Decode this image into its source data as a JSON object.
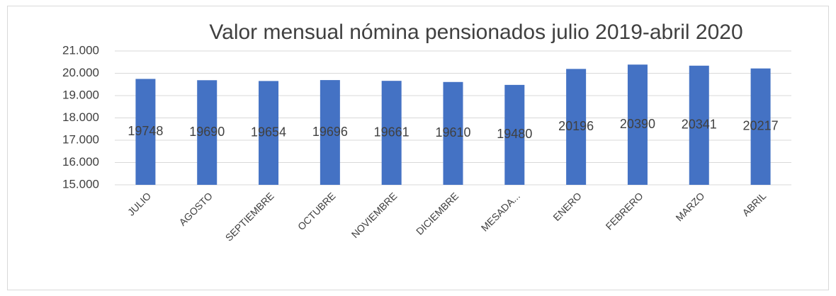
{
  "chart_data": {
    "type": "bar",
    "title": "Valor mensual nómina pensionados julio 2019-abril 2020",
    "categories": [
      "JULIO",
      "AGOSTO",
      "SEPTIEMBRE",
      "OCTUBRE",
      "NOVIEMBRE",
      "DICIEMBRE",
      "MESADA...",
      "ENERO",
      "FEBRERO",
      "MARZO",
      "ABRIL"
    ],
    "values": [
      19748,
      19690,
      19654,
      19696,
      19661,
      19610,
      19480,
      20196,
      20390,
      20341,
      20217
    ],
    "color": "#4472c4",
    "ylim": [
      15000,
      21000
    ],
    "yticks": [
      {
        "value": 15000,
        "label": "15.000"
      },
      {
        "value": 16000,
        "label": "16.000"
      },
      {
        "value": 17000,
        "label": "17.000"
      },
      {
        "value": 18000,
        "label": "18.000"
      },
      {
        "value": 19000,
        "label": "19.000"
      },
      {
        "value": 20000,
        "label": "20.000"
      },
      {
        "value": 21000,
        "label": "21.000"
      }
    ],
    "grid": true
  }
}
